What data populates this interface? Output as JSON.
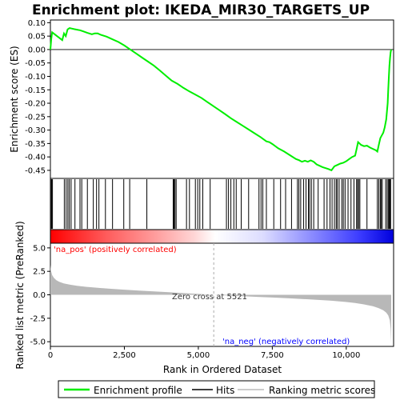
{
  "chart_data": [
    {
      "type": "line",
      "title": "Enrichment plot: IKEDA_MIR30_TARGETS_UP",
      "ylabel": "Enrichment score (ES)",
      "xlim": [
        0,
        11600
      ],
      "ylim": [
        -0.48,
        0.11
      ],
      "yticks": [
        0.1,
        0.05,
        0.0,
        -0.05,
        -0.1,
        -0.15,
        -0.2,
        -0.25,
        -0.3,
        -0.35,
        -0.4,
        -0.45
      ],
      "ytick_labels": [
        "0.10",
        "0.05",
        "0.00",
        "-0.05",
        "-0.10",
        "-0.15",
        "-0.20",
        "-0.25",
        "-0.30",
        "-0.35",
        "-0.40",
        "-0.45"
      ],
      "series": [
        {
          "name": "Enrichment profile",
          "color": "#00ee00",
          "x": [
            0,
            30,
            60,
            400,
            460,
            520,
            580,
            650,
            720,
            800,
            900,
            1000,
            1100,
            1250,
            1400,
            1500,
            1600,
            1700,
            1900,
            2100,
            2300,
            2500,
            2700,
            2900,
            3100,
            3300,
            3500,
            3700,
            3900,
            4100,
            4300,
            4500,
            4700,
            4900,
            5100,
            5300,
            5500,
            5700,
            5900,
            6100,
            6300,
            6500,
            6700,
            6900,
            7100,
            7300,
            7400,
            7500,
            7700,
            7900,
            8100,
            8300,
            8400,
            8500,
            8600,
            8700,
            8800,
            8900,
            9000,
            9200,
            9400,
            9500,
            9600,
            9700,
            9800,
            9900,
            10000,
            10100,
            10200,
            10300,
            10350,
            10400,
            10450,
            10500,
            10600,
            10700,
            10800,
            10900,
            11000,
            11050,
            11100,
            11150,
            11200,
            11250,
            11300,
            11350,
            11400,
            11420,
            11440,
            11460,
            11480,
            11500,
            11520
          ],
          "y": [
            0.0,
            0.04,
            0.064,
            0.035,
            0.06,
            0.05,
            0.075,
            0.08,
            0.078,
            0.076,
            0.074,
            0.072,
            0.068,
            0.062,
            0.057,
            0.06,
            0.06,
            0.055,
            0.048,
            0.038,
            0.028,
            0.015,
            0.0,
            -0.015,
            -0.03,
            -0.045,
            -0.06,
            -0.078,
            -0.097,
            -0.116,
            -0.128,
            -0.143,
            -0.156,
            -0.168,
            -0.18,
            -0.195,
            -0.21,
            -0.225,
            -0.24,
            -0.256,
            -0.27,
            -0.284,
            -0.298,
            -0.312,
            -0.326,
            -0.342,
            -0.345,
            -0.352,
            -0.368,
            -0.38,
            -0.394,
            -0.408,
            -0.412,
            -0.418,
            -0.414,
            -0.418,
            -0.413,
            -0.418,
            -0.428,
            -0.438,
            -0.445,
            -0.45,
            -0.435,
            -0.43,
            -0.425,
            -0.422,
            -0.416,
            -0.408,
            -0.4,
            -0.395,
            -0.37,
            -0.345,
            -0.35,
            -0.355,
            -0.36,
            -0.358,
            -0.365,
            -0.37,
            -0.375,
            -0.38,
            -0.355,
            -0.33,
            -0.32,
            -0.31,
            -0.29,
            -0.26,
            -0.2,
            -0.15,
            -0.1,
            -0.06,
            -0.03,
            -0.01,
            0.0
          ]
        }
      ]
    },
    {
      "type": "heatmap",
      "series": [
        {
          "name": "Hits",
          "x": [
            10,
            40,
            70,
            470,
            530,
            590,
            640,
            700,
            830,
            1000,
            1060,
            1250,
            1450,
            1560,
            1640,
            1860,
            2100,
            2480,
            2680,
            3260,
            4150,
            4180,
            4210,
            4250,
            4600,
            4700,
            4900,
            4980,
            5050,
            5150,
            5400,
            5950,
            6020,
            6100,
            6200,
            6280,
            6450,
            6700,
            7050,
            7120,
            7180,
            7300,
            7550,
            7780,
            7950,
            8150,
            8350,
            8400,
            8460,
            8560,
            8640,
            8720,
            8760,
            8820,
            8900,
            9050,
            9250,
            9350,
            9450,
            9520,
            9600,
            9660,
            9700,
            9760,
            9850,
            9900,
            9960,
            10060,
            10160,
            10260,
            10350,
            10380,
            10420,
            10460,
            10700,
            11050,
            11100,
            11150,
            11180,
            11220,
            11330,
            11380,
            11420,
            11450,
            11480,
            11500
          ]
        }
      ]
    },
    {
      "type": "area",
      "ylabel": "Ranked list metric (PreRanked)",
      "xlabel": "Rank in Ordered Dataset",
      "xlim": [
        0,
        11600
      ],
      "ylim": [
        -5.5,
        5.5
      ],
      "xticks": [
        0,
        2500,
        5000,
        7500,
        10000
      ],
      "xtick_labels": [
        "0",
        "2,500",
        "5,000",
        "7,500",
        "10,000"
      ],
      "yticks": [
        5.0,
        2.5,
        0.0,
        -2.5,
        -5.0
      ],
      "ytick_labels": [
        "5.0",
        "2.5",
        "0.0",
        "-2.5",
        "-5.0"
      ],
      "series": [
        {
          "name": "Ranking metric scores",
          "x": [
            0,
            20,
            60,
            120,
            200,
            300,
            450,
            650,
            900,
            1200,
            1600,
            2000,
            2500,
            3000,
            3500,
            4000,
            4500,
            5000,
            5521,
            6000,
            6500,
            7000,
            7500,
            8000,
            8500,
            9000,
            9500,
            10000,
            10300,
            10600,
            10900,
            11100,
            11250,
            11350,
            11420,
            11470,
            11500,
            11520
          ],
          "values": [
            3.2,
            2.6,
            2.1,
            1.8,
            1.55,
            1.38,
            1.22,
            1.08,
            0.96,
            0.85,
            0.74,
            0.65,
            0.55,
            0.45,
            0.36,
            0.27,
            0.18,
            0.09,
            0.0,
            -0.08,
            -0.15,
            -0.22,
            -0.29,
            -0.36,
            -0.44,
            -0.53,
            -0.63,
            -0.77,
            -0.88,
            -1.02,
            -1.22,
            -1.42,
            -1.65,
            -1.9,
            -2.2,
            -2.7,
            -3.6,
            -5.1
          ]
        }
      ],
      "annotations": {
        "pos_label": "'na_pos' (positively correlated)",
        "neg_label": "'na_neg' (negatively correlated)",
        "zero_cross": "Zero cross at 5521",
        "zero_cross_rank": 5521,
        "pos_color": "#ff0000",
        "neg_color": "#0000ff"
      }
    }
  ],
  "legend": {
    "items": [
      {
        "label": "Enrichment profile",
        "color": "#00ee00"
      },
      {
        "label": "Hits",
        "color": "#000000"
      },
      {
        "label": "Ranking metric scores",
        "color": "#bbbbbb"
      }
    ]
  }
}
